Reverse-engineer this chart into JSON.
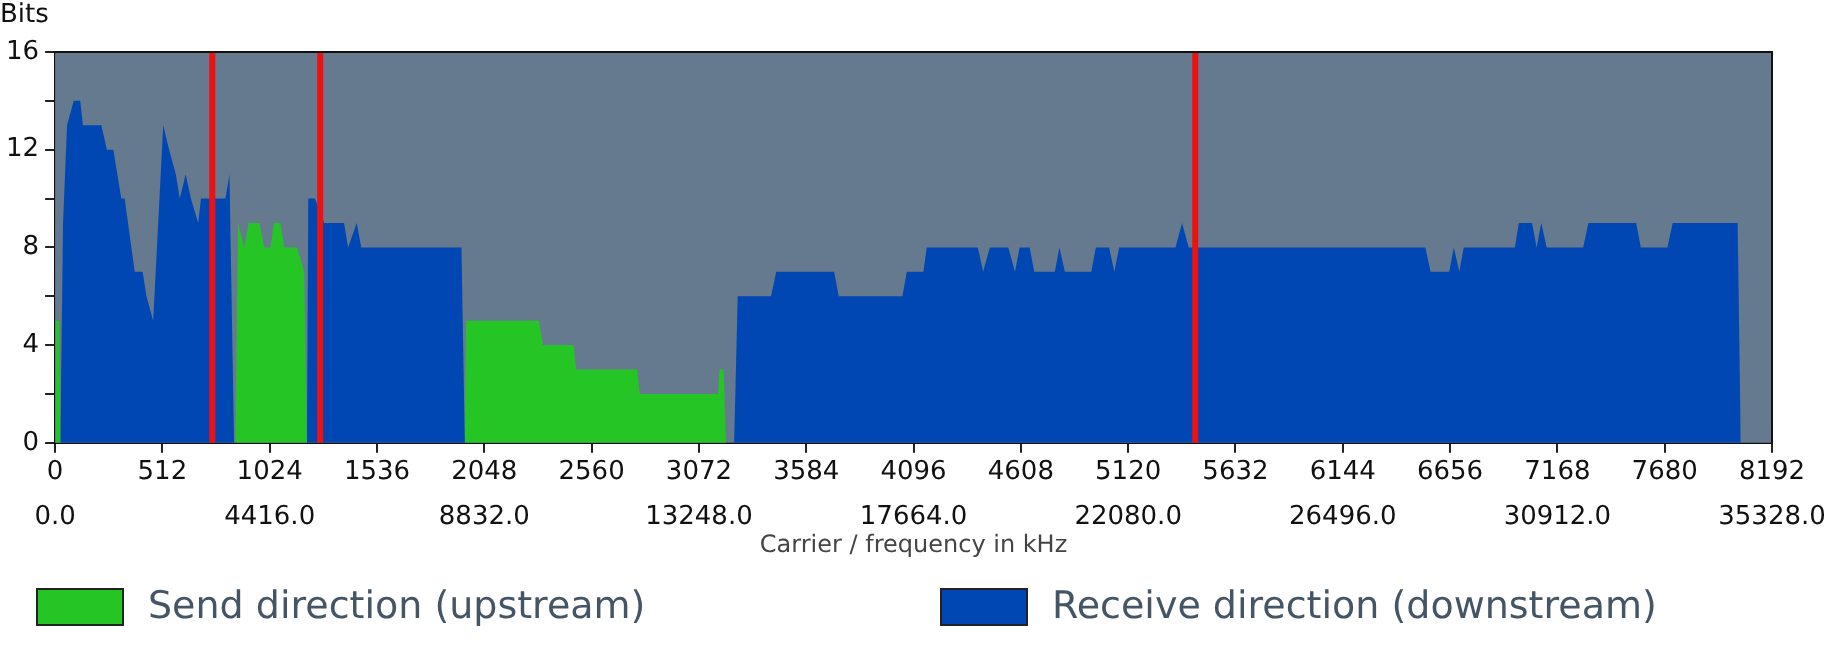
{
  "chart_data": {
    "type": "area",
    "xlabel": "Carrier / frequency in kHz",
    "ylabel": "Bits",
    "xlim": [
      0,
      8192
    ],
    "xticks": [
      0,
      512,
      1024,
      1536,
      2048,
      2560,
      3072,
      3584,
      4096,
      4608,
      5120,
      5632,
      6144,
      6656,
      7168,
      7680,
      8192
    ],
    "x2lim": [
      0,
      35328
    ],
    "x2ticks": [
      {
        "value": 0,
        "label": "0.0"
      },
      {
        "value": 4416,
        "label": "4416.0"
      },
      {
        "value": 8832,
        "label": "8832.0"
      },
      {
        "value": 13248,
        "label": "13248.0"
      },
      {
        "value": 17664,
        "label": "17664.0"
      },
      {
        "value": 22080,
        "label": "22080.0"
      },
      {
        "value": 26496,
        "label": "26496.0"
      },
      {
        "value": 30912,
        "label": "30912.0"
      },
      {
        "value": 35328,
        "label": "35328.0"
      }
    ],
    "ylim": [
      0,
      16
    ],
    "yticks": [
      0,
      {
        "value": 2,
        "label": null
      },
      4,
      {
        "value": 6,
        "label": null
      },
      8,
      {
        "value": 10,
        "label": null
      },
      12,
      {
        "value": 14,
        "label": null
      },
      16
    ],
    "legend": "bottom",
    "ref_lines": [
      {
        "axis": "x",
        "value": 750,
        "color": "#ee1111"
      },
      {
        "axis": "x",
        "value": 1265,
        "color": "#ee1111"
      },
      {
        "axis": "x",
        "value": 5440,
        "color": "#ee1111"
      }
    ],
    "series": [
      {
        "name": "Send direction (upstream)",
        "color": "#26c526",
        "x": [
          0,
          3,
          20,
          25,
          860,
          873,
          902,
          924,
          975,
          999,
          1028,
          1044,
          1075,
          1094,
          1154,
          1189,
          1202,
          1955,
          1961,
          2309,
          2327,
          2473,
          2486,
          2777,
          2790,
          3163,
          3170,
          3190,
          3201
        ],
        "values": [
          0,
          5,
          5,
          0,
          0,
          9,
          8,
          9,
          9,
          8,
          8,
          9,
          9,
          8,
          8,
          7,
          0,
          0,
          5,
          5,
          4,
          4,
          3,
          3,
          2,
          2,
          3,
          3,
          0
        ]
      },
      {
        "name": "Receive direction (downstream)",
        "color": "#0047b3",
        "x": [
          25,
          38,
          57,
          89,
          120,
          133,
          221,
          247,
          278,
          316,
          332,
          380,
          418,
          436,
          468,
          516,
          544,
          576,
          595,
          623,
          648,
          683,
          696,
          813,
          832,
          854,
          1202,
          1208,
          1240,
          1284,
          1379,
          1398,
          1439,
          1461,
          1939,
          1955,
          3240,
          3257,
          3416,
          3441,
          3717,
          3739,
          4043,
          4064,
          4143,
          4159,
          4403,
          4428,
          4460,
          4548,
          4580,
          4602,
          4650,
          4672,
          4770,
          4792,
          4818,
          4944,
          4966,
          5029,
          5054,
          5077,
          5346,
          5377,
          5409,
          6538,
          6563,
          6652,
          6674,
          6700,
          6721,
          6965,
          6984,
          7047,
          7069,
          7091,
          7117,
          7291,
          7316,
          7544,
          7566,
          7693,
          7718,
          8028,
          8043
        ],
        "values": [
          0,
          9,
          13,
          14,
          14,
          13,
          13,
          12,
          12,
          10,
          10,
          7,
          7,
          6,
          5,
          13,
          12,
          11,
          10,
          11,
          10,
          9,
          10,
          10,
          11,
          0,
          0,
          10,
          10,
          9,
          9,
          8,
          9,
          8,
          8,
          0,
          0,
          6,
          6,
          7,
          7,
          6,
          6,
          7,
          7,
          8,
          8,
          7,
          8,
          8,
          7,
          8,
          8,
          7,
          7,
          8,
          7,
          7,
          8,
          8,
          7,
          8,
          8,
          9,
          8,
          8,
          7,
          7,
          8,
          7,
          8,
          8,
          9,
          9,
          8,
          9,
          8,
          8,
          9,
          9,
          8,
          8,
          9,
          9,
          0
        ]
      }
    ]
  }
}
